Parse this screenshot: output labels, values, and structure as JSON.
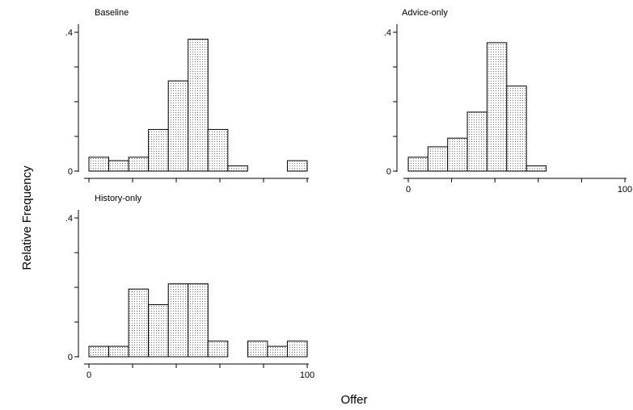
{
  "chart_data": {
    "type": "bar",
    "xlabel": "Offer",
    "ylabel": "Relative Frequency",
    "x_ticks": [
      0,
      100
    ],
    "y_ticks": [
      0,
      0.4
    ],
    "y_tick_labels": [
      "0",
      ".4"
    ],
    "x_tick_labels": [
      "0",
      "100"
    ],
    "xlim": [
      0,
      100
    ],
    "ylim": [
      0,
      0.4
    ],
    "bin_width": 9.09,
    "panels": [
      {
        "title": "Baseline",
        "show_x_labels": false,
        "bars": [
          {
            "x0": 0,
            "x1": 9.09,
            "value": 0.04
          },
          {
            "x0": 9.09,
            "x1": 18.18,
            "value": 0.03
          },
          {
            "x0": 18.18,
            "x1": 27.27,
            "value": 0.04
          },
          {
            "x0": 27.27,
            "x1": 36.36,
            "value": 0.12
          },
          {
            "x0": 36.36,
            "x1": 45.45,
            "value": 0.26
          },
          {
            "x0": 45.45,
            "x1": 54.55,
            "value": 0.38
          },
          {
            "x0": 54.55,
            "x1": 63.64,
            "value": 0.12
          },
          {
            "x0": 63.64,
            "x1": 72.73,
            "value": 0.015
          },
          {
            "x0": 90.91,
            "x1": 100,
            "value": 0.03
          }
        ]
      },
      {
        "title": "Advice-only",
        "show_x_labels": true,
        "bars": [
          {
            "x0": 0,
            "x1": 9.09,
            "value": 0.04
          },
          {
            "x0": 9.09,
            "x1": 18.18,
            "value": 0.07
          },
          {
            "x0": 18.18,
            "x1": 27.27,
            "value": 0.095
          },
          {
            "x0": 27.27,
            "x1": 36.36,
            "value": 0.17
          },
          {
            "x0": 36.36,
            "x1": 45.45,
            "value": 0.37
          },
          {
            "x0": 45.45,
            "x1": 54.55,
            "value": 0.245
          },
          {
            "x0": 54.55,
            "x1": 63.64,
            "value": 0.015
          }
        ]
      },
      {
        "title": "History-only",
        "show_x_labels": true,
        "bars": [
          {
            "x0": 0,
            "x1": 9.09,
            "value": 0.03
          },
          {
            "x0": 9.09,
            "x1": 18.18,
            "value": 0.03
          },
          {
            "x0": 18.18,
            "x1": 27.27,
            "value": 0.195
          },
          {
            "x0": 27.27,
            "x1": 36.36,
            "value": 0.15
          },
          {
            "x0": 36.36,
            "x1": 45.45,
            "value": 0.21
          },
          {
            "x0": 45.45,
            "x1": 54.55,
            "value": 0.21
          },
          {
            "x0": 54.55,
            "x1": 63.64,
            "value": 0.045
          },
          {
            "x0": 72.73,
            "x1": 81.82,
            "value": 0.045
          },
          {
            "x0": 81.82,
            "x1": 90.91,
            "value": 0.03
          },
          {
            "x0": 90.91,
            "x1": 100,
            "value": 0.045
          }
        ]
      }
    ],
    "grid": false,
    "legend": "none",
    "bar_fill": "dotted-gray",
    "colors": {
      "bar_stroke": "#000000",
      "dot": "#6e6e6e",
      "background": "#ffffff"
    }
  }
}
